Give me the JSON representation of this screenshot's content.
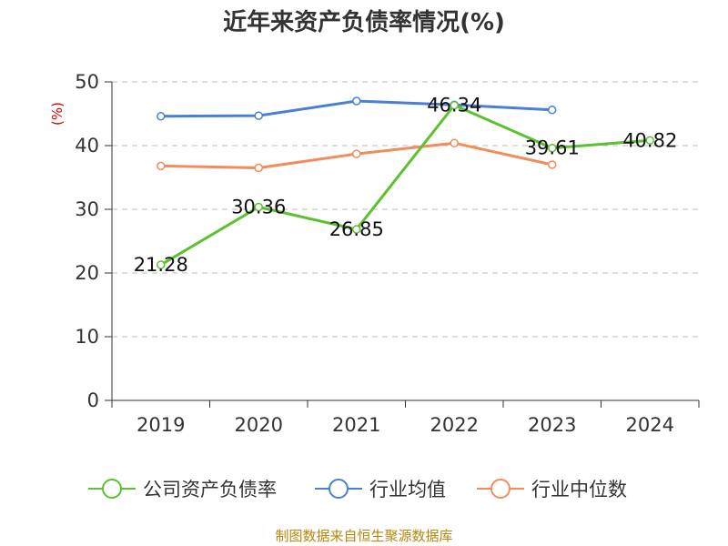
{
  "header": {
    "title": "近年来资产负债率情况(%)"
  },
  "footer": {
    "source": "制图数据来自恒生聚源数据库"
  },
  "chart_data": {
    "type": "line",
    "title": "近年来资产负债率情况(%)",
    "xlabel": "",
    "ylabel": "(%)",
    "ylim": [
      0,
      50
    ],
    "yticks": [
      0,
      10,
      20,
      30,
      40,
      50
    ],
    "grid": true,
    "legend_position": "bottom",
    "categories": [
      "2019",
      "2020",
      "2021",
      "2022",
      "2023",
      "2024"
    ],
    "series": [
      {
        "name": "公司资产负债率",
        "color": "#5cc130",
        "values": [
          21.28,
          30.36,
          26.85,
          46.34,
          39.61,
          40.82
        ],
        "labels": [
          "21.28",
          "30.36",
          "26.85",
          "46.34",
          "39.61",
          "40.82"
        ]
      },
      {
        "name": "行业均值",
        "color": "#4a7fd6",
        "values": [
          44.6,
          44.7,
          47.0,
          46.4,
          45.6,
          null
        ]
      },
      {
        "name": "行业中位数",
        "color": "#f28c5b",
        "values": [
          36.8,
          36.5,
          38.7,
          40.4,
          37.0,
          null
        ]
      }
    ]
  },
  "colors": {
    "axis": "#333333",
    "grid": "#bbbbbb",
    "ylabel": "#cc0000"
  }
}
